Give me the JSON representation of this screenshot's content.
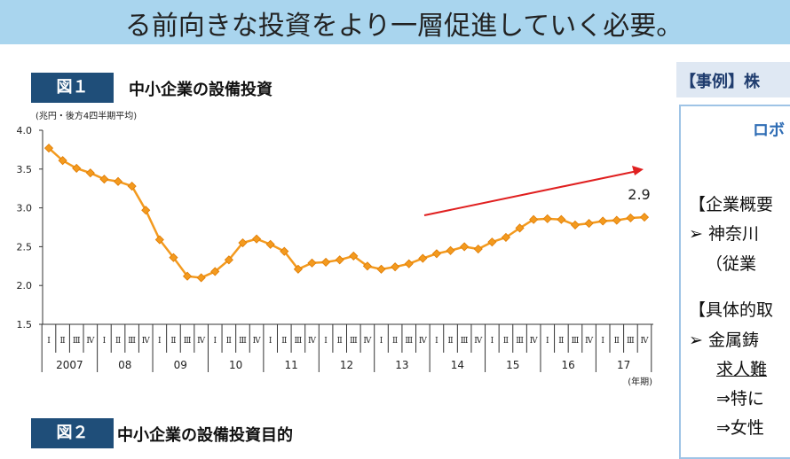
{
  "header": {
    "title": "る前向きな投資をより一層促進していく必要。"
  },
  "figure1": {
    "label": "図１",
    "title": "中小企業の設備投資"
  },
  "figure2": {
    "label": "図２",
    "title": "中小企業の設備投資目的"
  },
  "chart_data": {
    "type": "line",
    "y_unit": "(兆円・後方4四半期平均)",
    "x_unit": "(年期)",
    "categories": [
      "Ⅰ",
      "Ⅱ",
      "Ⅲ",
      "Ⅳ",
      "Ⅰ",
      "Ⅱ",
      "Ⅲ",
      "Ⅳ",
      "Ⅰ",
      "Ⅱ",
      "Ⅲ",
      "Ⅳ",
      "Ⅰ",
      "Ⅱ",
      "Ⅲ",
      "Ⅳ",
      "Ⅰ",
      "Ⅱ",
      "Ⅲ",
      "Ⅳ",
      "Ⅰ",
      "Ⅱ",
      "Ⅲ",
      "Ⅳ",
      "Ⅰ",
      "Ⅱ",
      "Ⅲ",
      "Ⅳ",
      "Ⅰ",
      "Ⅱ",
      "Ⅲ",
      "Ⅳ",
      "Ⅰ",
      "Ⅱ",
      "Ⅲ",
      "Ⅳ",
      "Ⅰ",
      "Ⅱ",
      "Ⅲ",
      "Ⅳ",
      "Ⅰ",
      "Ⅱ",
      "Ⅲ",
      "Ⅳ"
    ],
    "year_groups": [
      "2007",
      "08",
      "09",
      "10",
      "11",
      "12",
      "13",
      "14",
      "15",
      "16",
      "17"
    ],
    "values": [
      3.77,
      3.61,
      3.51,
      3.45,
      3.37,
      3.34,
      3.28,
      2.97,
      2.59,
      2.36,
      2.12,
      2.1,
      2.18,
      2.33,
      2.55,
      2.6,
      2.53,
      2.44,
      2.21,
      2.29,
      2.3,
      2.33,
      2.38,
      2.25,
      2.21,
      2.24,
      2.28,
      2.35,
      2.41,
      2.45,
      2.5,
      2.47,
      2.56,
      2.62,
      2.74,
      2.85,
      2.86,
      2.85,
      2.78,
      2.8,
      2.83,
      2.84,
      2.87,
      2.88
    ],
    "value_labels": [
      null,
      null,
      null,
      null,
      null,
      null,
      null,
      null,
      null,
      null,
      null,
      null,
      null,
      null,
      null,
      null,
      null,
      null,
      null,
      null,
      null,
      null,
      null,
      null,
      null,
      null,
      null,
      null,
      null,
      null,
      null,
      null,
      null,
      null,
      null,
      null,
      null,
      null,
      null,
      null,
      null,
      null,
      null,
      "2.9"
    ],
    "color": "#f39a1f",
    "ylim": [
      1.5,
      4.0
    ],
    "yticks": [
      1.5,
      {
        "value": 2.0,
        "label": "2.0"
      },
      2.5,
      {
        "value": 3.0,
        "label": "3.0"
      },
      3.5,
      {
        "value": 4.0,
        "label": "4.0"
      }
    ]
  },
  "case": {
    "header": "【事例】株",
    "box_title": "ロボ",
    "lines": [
      "【企業概要",
      "➢ 神奈川",
      "（従業",
      "【具体的取",
      "➢ 金属鋳",
      "求人難",
      "⇒特に",
      "⇒女性"
    ]
  }
}
